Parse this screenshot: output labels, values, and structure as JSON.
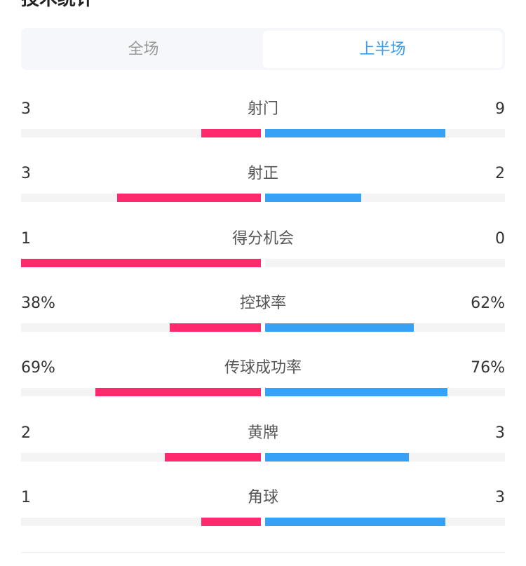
{
  "title": "技术统计",
  "tabs": [
    {
      "label": "全场",
      "active": false
    },
    {
      "label": "上半场",
      "active": true
    }
  ],
  "colors": {
    "home": "#fe2a6d",
    "away": "#37a1f6",
    "track": "#f4f4f4",
    "active_tab": "#3a9be8"
  },
  "stats": [
    {
      "label": "射门",
      "home": "3",
      "away": "9",
      "home_fraction": 0.25,
      "away_fraction": 0.75
    },
    {
      "label": "射正",
      "home": "3",
      "away": "2",
      "home_fraction": 0.6,
      "away_fraction": 0.4
    },
    {
      "label": "得分机会",
      "home": "1",
      "away": "0",
      "home_fraction": 1.0,
      "away_fraction": 0.0
    },
    {
      "label": "控球率",
      "home": "38%",
      "away": "62%",
      "home_fraction": 0.38,
      "away_fraction": 0.62
    },
    {
      "label": "传球成功率",
      "home": "69%",
      "away": "76%",
      "home_fraction": 0.69,
      "away_fraction": 0.76
    },
    {
      "label": "黄牌",
      "home": "2",
      "away": "3",
      "home_fraction": 0.4,
      "away_fraction": 0.6
    },
    {
      "label": "角球",
      "home": "1",
      "away": "3",
      "home_fraction": 0.25,
      "away_fraction": 0.75
    }
  ]
}
